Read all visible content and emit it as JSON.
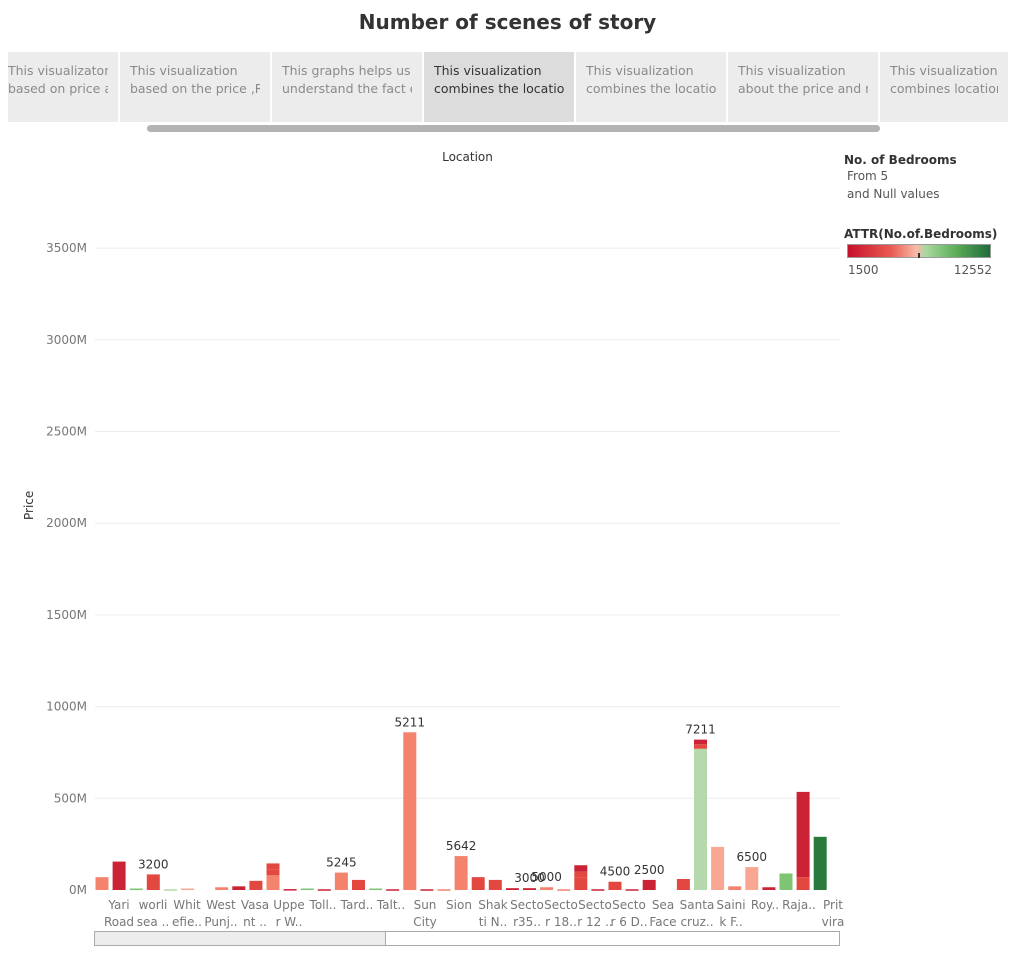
{
  "title": "Number of scenes of story",
  "story_points": [
    {
      "line1": "This visualizaton",
      "line2": "based on price a..",
      "active": false
    },
    {
      "line1": "This visualization",
      "line2": "based on the price ,R..",
      "active": false
    },
    {
      "line1": "This graphs helps us to",
      "line2": "understand the fact o..",
      "active": false
    },
    {
      "line1": "This visualization",
      "line2": "combines the locatio..",
      "active": true
    },
    {
      "line1": "This visualization",
      "line2": "combines the locatio..",
      "active": false
    },
    {
      "line1": "This visualization",
      "line2": "about the price and m..",
      "active": false
    },
    {
      "line1": "This visualization",
      "line2": "combines location ..",
      "active": false
    }
  ],
  "legend": {
    "filter_title": "No. of Bedrooms",
    "filter_line1": "From 5",
    "filter_line2": "and Null values",
    "color_title": "ATTR(No.of.Bedrooms)",
    "color_min": "1500",
    "color_max": "12552"
  },
  "colors": {
    "dark_red": "#cc2236",
    "red": "#e2483f",
    "salmon": "#f4836d",
    "light_salmon": "#f9a793",
    "light_green": "#b5d8ac",
    "green": "#7ec472",
    "dark_green": "#2b7a3d"
  },
  "chart_data": {
    "type": "bar",
    "stacked": true,
    "title": "",
    "xlabel": "Location",
    "ylabel": "Price",
    "y_unit": "M",
    "ylim": [
      -10,
      3950
    ],
    "y_ticks": [
      "0M",
      "500M",
      "1000M",
      "1500M",
      "2000M",
      "2500M",
      "3000M",
      "3500M"
    ],
    "y_tick_values": [
      0,
      500,
      1000,
      1500,
      2000,
      2500,
      3000,
      3500
    ],
    "grid": true,
    "legend_position": "right",
    "categories": [
      {
        "label1": "Yari",
        "label2": "Road"
      },
      {
        "label1": "worli",
        "label2": "sea .."
      },
      {
        "label1": "Whit",
        "label2": "efie.."
      },
      {
        "label1": "West",
        "label2": "Punj.."
      },
      {
        "label1": "Vasa",
        "label2": "nt .."
      },
      {
        "label1": "Uppe",
        "label2": "r W.."
      },
      {
        "label1": "Toll..",
        "label2": ""
      },
      {
        "label1": "Tard..",
        "label2": ""
      },
      {
        "label1": "Talt..",
        "label2": ""
      },
      {
        "label1": "Sun",
        "label2": "City"
      },
      {
        "label1": "Sion",
        "label2": ""
      },
      {
        "label1": "Shak",
        "label2": "ti N.."
      },
      {
        "label1": "Secto",
        "label2": "r35.."
      },
      {
        "label1": "Secto",
        "label2": "r 18.."
      },
      {
        "label1": "Secto",
        "label2": "r 12 .."
      },
      {
        "label1": "Secto",
        "label2": "r 6 D.."
      },
      {
        "label1": "Sea",
        "label2": "Face"
      },
      {
        "label1": "Santa",
        "label2": "cruz.."
      },
      {
        "label1": "Saini",
        "label2": "k F.."
      },
      {
        "label1": "Roy..",
        "label2": ""
      },
      {
        "label1": "Raja..",
        "label2": ""
      },
      {
        "label1": "Prit",
        "label2": "vira"
      }
    ],
    "bars": [
      {
        "slot": 0,
        "segments": [
          {
            "value": 70,
            "color": "salmon"
          }
        ]
      },
      {
        "slot": 1,
        "segments": [
          {
            "value": 155,
            "color": "dark_red"
          }
        ]
      },
      {
        "slot": 2,
        "segments": [
          {
            "value": 8,
            "color": "green"
          }
        ]
      },
      {
        "slot": 3,
        "segments": [
          {
            "value": 85,
            "color": "red"
          }
        ],
        "label": "3200"
      },
      {
        "slot": 4,
        "segments": [
          {
            "value": 4,
            "color": "light_green"
          }
        ]
      },
      {
        "slot": 5,
        "segments": [
          {
            "value": 8,
            "color": "light_salmon"
          }
        ]
      },
      {
        "slot": 7,
        "segments": [
          {
            "value": 15,
            "color": "salmon"
          }
        ]
      },
      {
        "slot": 8,
        "segments": [
          {
            "value": 20,
            "color": "dark_red"
          }
        ]
      },
      {
        "slot": 9,
        "segments": [
          {
            "value": 50,
            "color": "red"
          }
        ]
      },
      {
        "slot": 10,
        "segments": [
          {
            "value": 80,
            "color": "salmon"
          },
          {
            "value": 30,
            "color": "red"
          },
          {
            "value": 35,
            "color": "red"
          }
        ]
      },
      {
        "slot": 11,
        "segments": [
          {
            "value": 5,
            "color": "dark_red"
          }
        ]
      },
      {
        "slot": 12,
        "segments": [
          {
            "value": 8,
            "color": "green"
          }
        ]
      },
      {
        "slot": 13,
        "segments": [
          {
            "value": 4,
            "color": "dark_red"
          }
        ]
      },
      {
        "slot": 14,
        "segments": [
          {
            "value": 95,
            "color": "salmon"
          }
        ],
        "label": "5245"
      },
      {
        "slot": 15,
        "segments": [
          {
            "value": 55,
            "color": "red"
          }
        ]
      },
      {
        "slot": 16,
        "segments": [
          {
            "value": 8,
            "color": "green"
          }
        ]
      },
      {
        "slot": 17,
        "segments": [
          {
            "value": 4,
            "color": "dark_red"
          }
        ]
      },
      {
        "slot": 18,
        "segments": [
          {
            "value": 860,
            "color": "salmon"
          }
        ],
        "label": "5211"
      },
      {
        "slot": 19,
        "segments": [
          {
            "value": 4,
            "color": "dark_red"
          }
        ]
      },
      {
        "slot": 20,
        "segments": [
          {
            "value": 4,
            "color": "salmon"
          }
        ]
      },
      {
        "slot": 21,
        "segments": [
          {
            "value": 185,
            "color": "salmon"
          }
        ],
        "label": "5642"
      },
      {
        "slot": 22,
        "segments": [
          {
            "value": 70,
            "color": "red"
          }
        ]
      },
      {
        "slot": 23,
        "segments": [
          {
            "value": 55,
            "color": "red"
          }
        ]
      },
      {
        "slot": 24,
        "segments": [
          {
            "value": 10,
            "color": "dark_red"
          }
        ]
      },
      {
        "slot": 25,
        "segments": [
          {
            "value": 10,
            "color": "dark_red"
          }
        ],
        "label": "3000"
      },
      {
        "slot": 26,
        "segments": [
          {
            "value": 15,
            "color": "salmon"
          }
        ],
        "label": "5000"
      },
      {
        "slot": 27,
        "segments": [
          {
            "value": 4,
            "color": "salmon"
          }
        ]
      },
      {
        "slot": 28,
        "segments": [
          {
            "value": 70,
            "color": "red"
          },
          {
            "value": 30,
            "color": "red"
          },
          {
            "value": 35,
            "color": "dark_red"
          }
        ]
      },
      {
        "slot": 29,
        "segments": [
          {
            "value": 4,
            "color": "dark_red"
          }
        ]
      },
      {
        "slot": 30,
        "segments": [
          {
            "value": 45,
            "color": "red"
          }
        ],
        "label": "4500"
      },
      {
        "slot": 31,
        "segments": [
          {
            "value": 4,
            "color": "dark_red"
          }
        ]
      },
      {
        "slot": 32,
        "segments": [
          {
            "value": 55,
            "color": "dark_red"
          }
        ],
        "label": "2500"
      },
      {
        "slot": 34,
        "segments": [
          {
            "value": 60,
            "color": "red"
          }
        ]
      },
      {
        "slot": 35,
        "segments": [
          {
            "value": 770,
            "color": "light_green"
          },
          {
            "value": 25,
            "color": "red"
          },
          {
            "value": 25,
            "color": "dark_red"
          }
        ],
        "label": "7211"
      },
      {
        "slot": 36,
        "segments": [
          {
            "value": 235,
            "color": "light_salmon"
          }
        ]
      },
      {
        "slot": 37,
        "segments": [
          {
            "value": 20,
            "color": "salmon"
          }
        ]
      },
      {
        "slot": 38,
        "segments": [
          {
            "value": 125,
            "color": "light_salmon"
          }
        ],
        "label": "6500"
      },
      {
        "slot": 39,
        "segments": [
          {
            "value": 15,
            "color": "dark_red"
          }
        ]
      },
      {
        "slot": 40,
        "segments": [
          {
            "value": 90,
            "color": "green"
          }
        ]
      },
      {
        "slot": 41,
        "segments": [
          {
            "value": 70,
            "color": "red"
          },
          {
            "value": 465,
            "color": "dark_red"
          }
        ]
      },
      {
        "slot": 42,
        "segments": [
          {
            "value": 290,
            "color": "dark_green"
          }
        ]
      }
    ]
  }
}
